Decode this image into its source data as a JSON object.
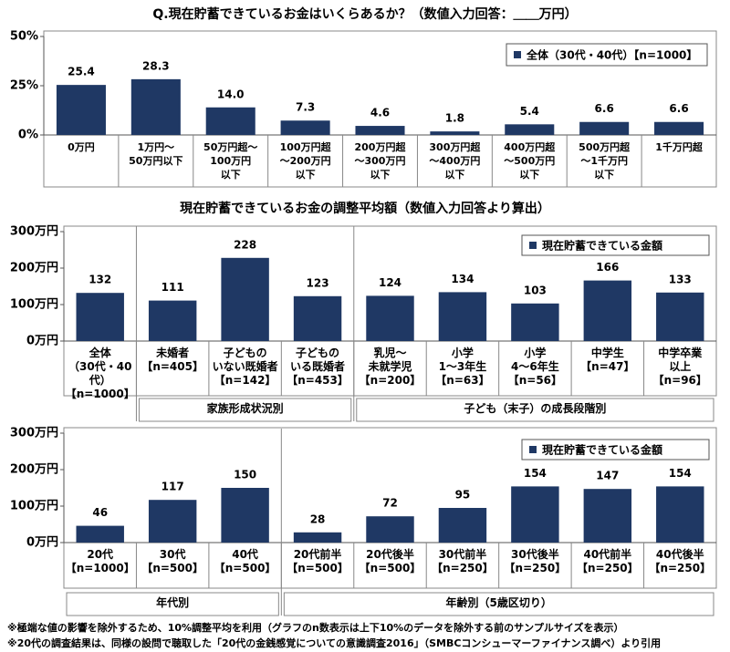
{
  "chart_data": [
    {
      "type": "bar",
      "title": "Q.現在貯蓄できているお金はいくらあるか？（数値入力回答：＿＿万円）",
      "categories": [
        "0万円",
        "1万円～\n50万円以下",
        "50万円超～\n100万円\n以下",
        "100万円超\n～200万円\n以下",
        "200万円超\n～300万円\n以下",
        "300万円超\n～400万円\n以下",
        "400万円超\n～500万円\n以下",
        "500万円超\n～1千万円\n以下",
        "1千万円超"
      ],
      "series": [
        {
          "name": "全体（30代・40代）【n=1000】",
          "color": "#1f3864",
          "values": [
            25.4,
            28.3,
            14.0,
            7.3,
            4.6,
            1.8,
            5.4,
            6.6,
            6.6
          ],
          "value_labels": [
            "25.4",
            "28.3",
            "14.0",
            "7.3",
            "4.6",
            "1.8",
            "5.4",
            "6.6",
            "6.6"
          ]
        }
      ],
      "ylim": [
        0,
        50
      ],
      "yticks": [
        {
          "value": 0,
          "label": "0%"
        },
        {
          "value": 25,
          "label": "25%"
        },
        {
          "value": 50,
          "label": "50%"
        }
      ],
      "legend": "top-right"
    },
    {
      "type": "bar",
      "title": "現在貯蓄できているお金の調整平均額（数値入力回答より算出）",
      "categories": [
        "全体\n（30代・40代）\n【n=1000】",
        "未婚者\n【n=405】",
        "子どもの\nいない既婚者\n【n=142】",
        "子どもの\nいる既婚者\n【n=453】",
        "乳児～\n未就学児\n【n=200】",
        "小学\n1～3年生\n【n=63】",
        "小学\n4～6年生\n【n=56】",
        "中学生\n【n=47】",
        "中学卒業\n以上\n【n=96】"
      ],
      "groups": [
        "家族形成状況別",
        "子ども（末子）の成長段階別"
      ],
      "series": [
        {
          "name": "現在貯蓄できている金額",
          "color": "#1f3864",
          "values": [
            132,
            111,
            228,
            123,
            124,
            134,
            103,
            166,
            133
          ]
        }
      ],
      "ylim": [
        0,
        300
      ],
      "yticks": [
        {
          "value": 0,
          "label": "0万円"
        },
        {
          "value": 100,
          "label": "100万円"
        },
        {
          "value": 200,
          "label": "200万円"
        },
        {
          "value": 300,
          "label": "300万円"
        }
      ],
      "legend": "top-right"
    },
    {
      "type": "bar",
      "categories": [
        "20代\n【n=1000】",
        "30代\n【n=500】",
        "40代\n【n=500】",
        "20代前半\n【n=500】",
        "20代後半\n【n=500】",
        "30代前半\n【n=250】",
        "30代後半\n【n=250】",
        "40代前半\n【n=250】",
        "40代後半\n【n=250】"
      ],
      "groups": [
        "年代別",
        "年齢別（5歳区切り）"
      ],
      "series": [
        {
          "name": "現在貯蓄できている金額",
          "color": "#1f3864",
          "values": [
            46,
            117,
            150,
            28,
            72,
            95,
            154,
            147,
            154
          ]
        }
      ],
      "ylim": [
        0,
        300
      ],
      "yticks": [
        {
          "value": 0,
          "label": "0万円"
        },
        {
          "value": 100,
          "label": "100万円"
        },
        {
          "value": 200,
          "label": "200万円"
        },
        {
          "value": 300,
          "label": "300万円"
        }
      ],
      "legend": "top-right"
    }
  ],
  "notes": [
    "※極端な値の影響を除外するため、10%調整平均を利用（グラフのn数表示は上下10%のデータを除外する前のサンプルサイズを表示）",
    "※20代の調査結果は、同様の設問で聴取した「20代の金銭感覚についての意識調査2016」（SMBCコンシューマーファイナンス調べ）より引用"
  ]
}
